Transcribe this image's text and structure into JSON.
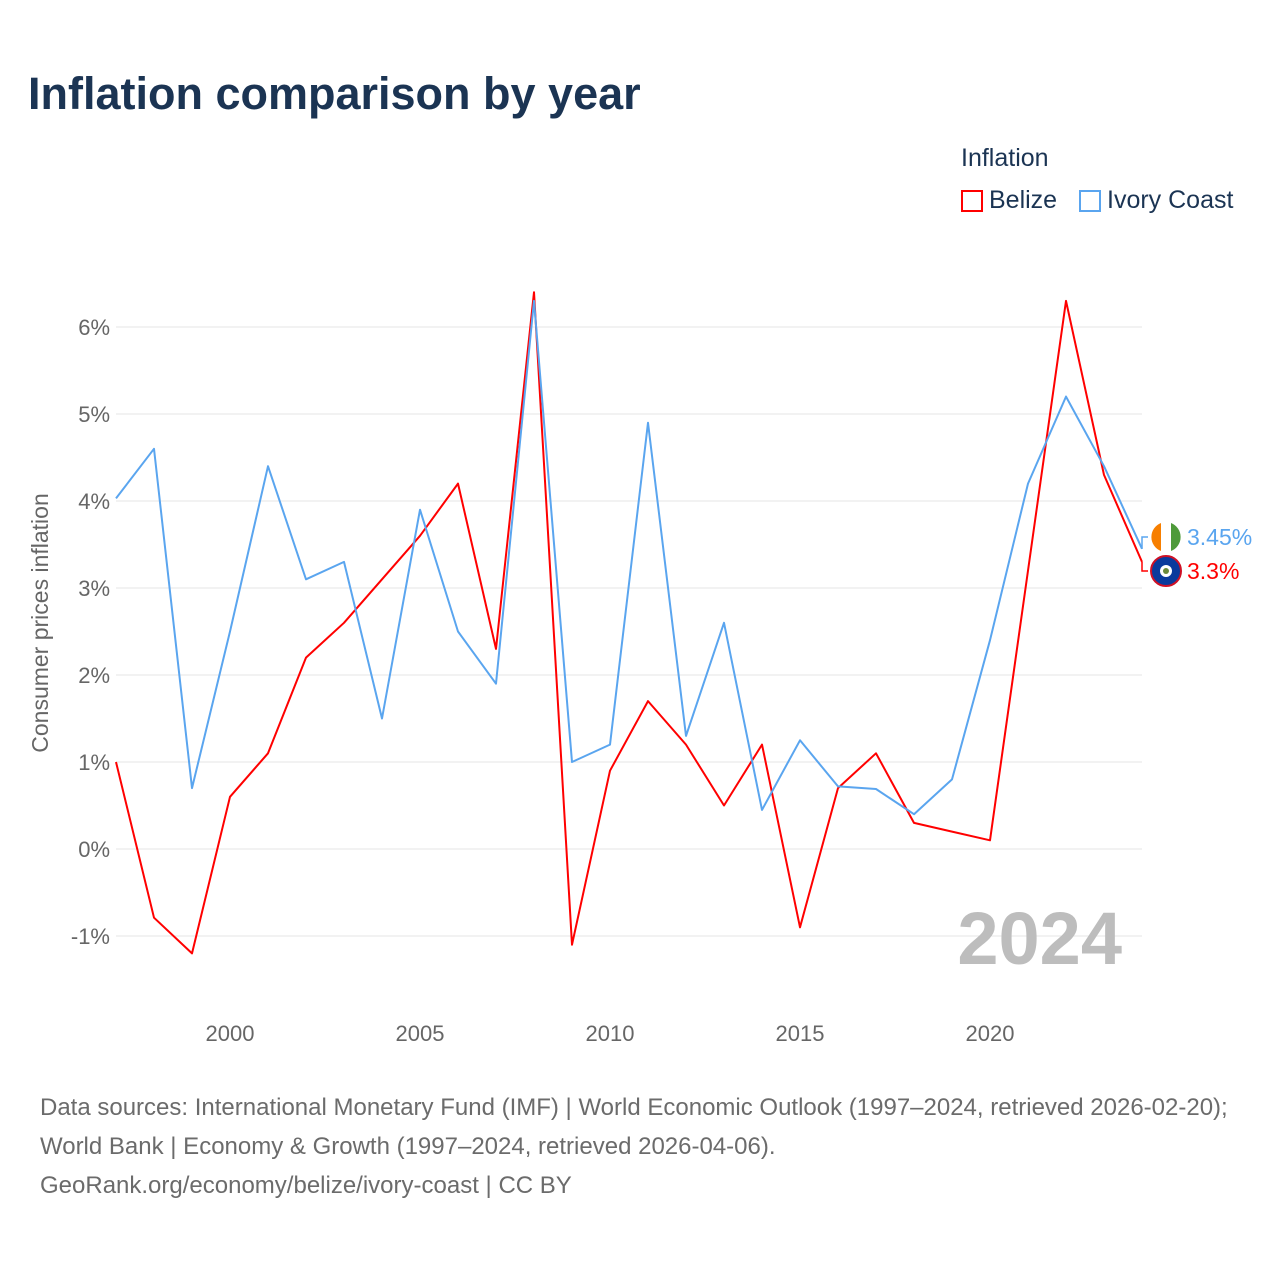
{
  "title": "Inflation comparison by year",
  "legend": {
    "title": "Inflation",
    "items": [
      {
        "name": "Belize",
        "color": "#ff0000"
      },
      {
        "name": "Ivory Coast",
        "color": "#5aa5ef"
      }
    ]
  },
  "footer": {
    "line1": "Data sources: International Monetary Fund (IMF) | World Economic Outlook (1997–2024, retrieved 2026-02-20); World Bank | Economy & Growth (1997–2024, retrieved 2026-04-06).",
    "line2": "GeoRank.org/economy/belize/ivory-coast | CC BY"
  },
  "chart_data": {
    "type": "line",
    "title": "Inflation comparison by year",
    "xlabel": "",
    "ylabel": "Consumer prices inflation",
    "year_watermark": "2024",
    "x": [
      1997,
      1998,
      1999,
      2000,
      2001,
      2002,
      2003,
      2004,
      2005,
      2006,
      2007,
      2008,
      2009,
      2010,
      2011,
      2012,
      2013,
      2014,
      2015,
      2016,
      2017,
      2018,
      2019,
      2020,
      2021,
      2022,
      2023,
      2024
    ],
    "xlim": [
      1997,
      2024
    ],
    "ylim": [
      -1.5,
      6.5
    ],
    "xticks": [
      2000,
      2005,
      2010,
      2015,
      2020
    ],
    "xtick_labels": [
      "2000",
      "2005",
      "2010",
      "2015",
      "2020"
    ],
    "yticks": [
      -1,
      0,
      1,
      2,
      3,
      4,
      5,
      6
    ],
    "ytick_labels": [
      "-1%",
      "0%",
      "1%",
      "2%",
      "3%",
      "4%",
      "5%",
      "6%"
    ],
    "grid": true,
    "legend_position": "top-right",
    "series": [
      {
        "name": "Belize",
        "color": "#ff0000",
        "end_label": "3.3%",
        "values": [
          1.0,
          -0.79,
          -1.2,
          0.6,
          1.1,
          2.2,
          2.6,
          3.1,
          3.6,
          4.2,
          2.3,
          6.4,
          -1.1,
          0.9,
          1.7,
          1.2,
          0.5,
          1.2,
          -0.9,
          0.7,
          1.1,
          0.3,
          0.2,
          0.1,
          3.2,
          6.3,
          4.3,
          3.3
        ]
      },
      {
        "name": "Ivory Coast",
        "color": "#5aa5ef",
        "end_label": "3.45%",
        "values": [
          4.03,
          4.6,
          0.7,
          2.5,
          4.4,
          3.1,
          3.3,
          1.5,
          3.9,
          2.5,
          1.9,
          6.3,
          1.0,
          1.2,
          4.9,
          1.3,
          2.6,
          0.45,
          1.25,
          0.72,
          0.69,
          0.4,
          0.8,
          2.4,
          4.2,
          5.2,
          4.4,
          3.45
        ]
      }
    ]
  }
}
